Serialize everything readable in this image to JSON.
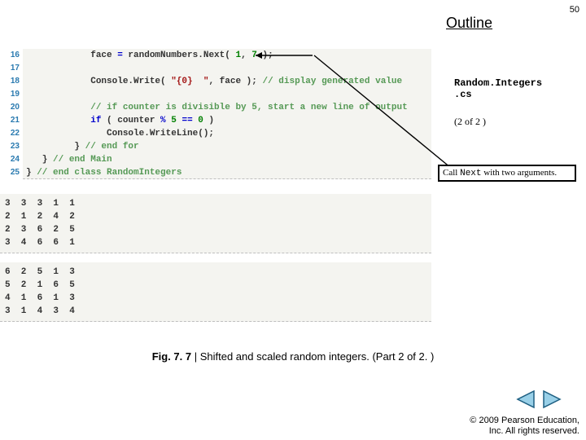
{
  "page_number": "50",
  "outline": "Outline",
  "filename_line1": "Random.Integers",
  "filename_line2": ".cs",
  "part_info": "(2 of 2 )",
  "callout_pre": "Call ",
  "callout_code": "Next",
  "callout_post": " with two arguments.",
  "caption_label": "Fig. 7. 7 ",
  "caption_bar": "| ",
  "caption_text": "Shifted and scaled random integers. (Part 2 of 2. )",
  "copyright_l1": "© 2009 Pearson Education,",
  "copyright_l2": "Inc. All rights reserved.",
  "code": {
    "lines": [
      {
        "n": "16",
        "tokens": [
          {
            "t": "            face ",
            "c": "plain"
          },
          {
            "t": "= ",
            "c": "kw"
          },
          {
            "t": "randomNumbers.Next( ",
            "c": "plain"
          },
          {
            "t": "1",
            "c": "num"
          },
          {
            "t": ", ",
            "c": "plain"
          },
          {
            "t": "7",
            "c": "num"
          },
          {
            "t": " );",
            "c": "plain"
          }
        ]
      },
      {
        "n": "17",
        "tokens": []
      },
      {
        "n": "18",
        "tokens": [
          {
            "t": "            Console.Write( ",
            "c": "plain"
          },
          {
            "t": "\"{0}  \"",
            "c": "str"
          },
          {
            "t": ", face ); ",
            "c": "plain"
          },
          {
            "t": "// display generated value",
            "c": "com"
          }
        ]
      },
      {
        "n": "19",
        "tokens": []
      },
      {
        "n": "20",
        "tokens": [
          {
            "t": "            ",
            "c": "plain"
          },
          {
            "t": "// if counter is divisible by 5, start a new line of output",
            "c": "com"
          }
        ]
      },
      {
        "n": "21",
        "tokens": [
          {
            "t": "            ",
            "c": "plain"
          },
          {
            "t": "if",
            "c": "kw"
          },
          {
            "t": " ( counter ",
            "c": "plain"
          },
          {
            "t": "%",
            "c": "kw"
          },
          {
            "t": " ",
            "c": "plain"
          },
          {
            "t": "5",
            "c": "num"
          },
          {
            "t": " ",
            "c": "plain"
          },
          {
            "t": "==",
            "c": "kw"
          },
          {
            "t": " ",
            "c": "plain"
          },
          {
            "t": "0",
            "c": "num"
          },
          {
            "t": " )",
            "c": "plain"
          }
        ]
      },
      {
        "n": "22",
        "tokens": [
          {
            "t": "               Console.WriteLine();",
            "c": "plain"
          }
        ]
      },
      {
        "n": "23",
        "tokens": [
          {
            "t": "         } ",
            "c": "plain"
          },
          {
            "t": "// end for",
            "c": "com"
          }
        ]
      },
      {
        "n": "24",
        "tokens": [
          {
            "t": "   } ",
            "c": "plain"
          },
          {
            "t": "// end Main",
            "c": "com"
          }
        ]
      },
      {
        "n": "25",
        "tokens": [
          {
            "t": "} ",
            "c": "plain"
          },
          {
            "t": "// end class RandomIntegers",
            "c": "com"
          }
        ]
      }
    ]
  },
  "output1": "3  3  3  1  1\n2  1  2  4  2\n2  3  6  2  5\n3  4  6  6  1",
  "output2": "6  2  5  1  3\n5  2  1  6  5\n4  1  6  1  3\n3  1  4  3  4",
  "colors": {
    "code_bg": "#f4f4f0",
    "lineno": "#2a7ab0",
    "keyword": "#0000cc",
    "number": "#008000",
    "string": "#a31515",
    "comment": "#559955",
    "nav_fill": "#99d0e8",
    "nav_stroke": "#1e5f82"
  }
}
